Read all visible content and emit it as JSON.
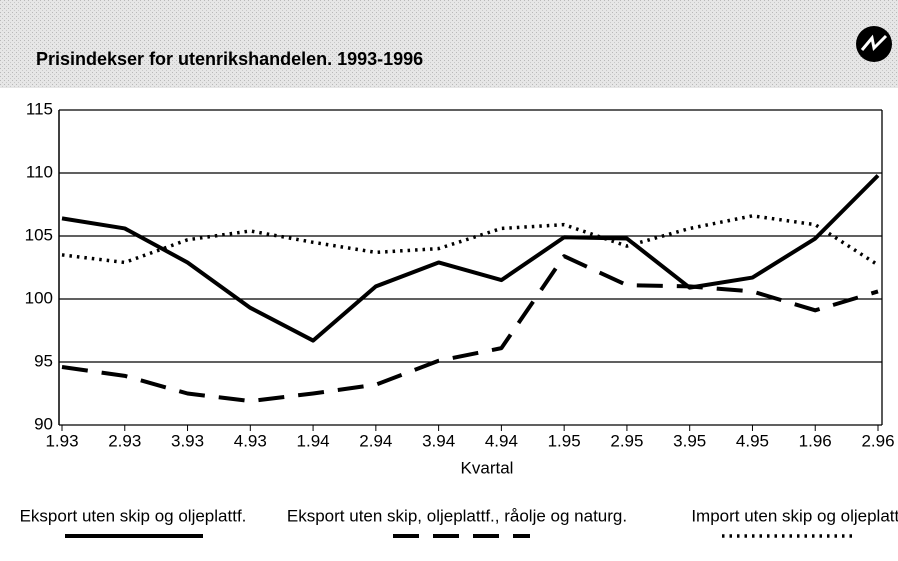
{
  "chart_data": {
    "type": "line",
    "title": "Prisindekser for utenrikshandelen. 1993-1996",
    "x_label": "Kvartal",
    "categories": [
      "1.93",
      "2.93",
      "3.93",
      "4.93",
      "1.94",
      "2.94",
      "3.94",
      "4.94",
      "1.95",
      "2.95",
      "3.95",
      "4.95",
      "1.96",
      "2.96"
    ],
    "series": [
      {
        "name": "Eksport uten skip og oljeplattf.",
        "color": "#000000",
        "style": "solid",
        "values": [
          106.4,
          105.6,
          102.9,
          99.3,
          96.7,
          101.0,
          102.9,
          101.5,
          104.9,
          104.8,
          100.9,
          101.7,
          104.8,
          109.8
        ]
      },
      {
        "name": "Eksport uten skip, oljeplattf., råolje og naturg.",
        "color": "#000000",
        "style": "dashed",
        "values": [
          94.6,
          93.9,
          92.5,
          91.9,
          92.5,
          93.2,
          95.1,
          96.1,
          103.4,
          101.1,
          101.0,
          100.6,
          99.1,
          100.6
        ]
      },
      {
        "name": "Import uten skip og oljeplattf.",
        "color": "#000000",
        "style": "dotted",
        "values": [
          103.5,
          102.9,
          104.7,
          105.4,
          104.5,
          103.7,
          104.0,
          105.6,
          105.9,
          104.2,
          105.6,
          106.6,
          105.9,
          102.7
        ]
      }
    ],
    "ylim": [
      90,
      115
    ],
    "yticks": [
      90,
      95,
      100,
      105,
      110,
      115
    ],
    "grid": true
  }
}
